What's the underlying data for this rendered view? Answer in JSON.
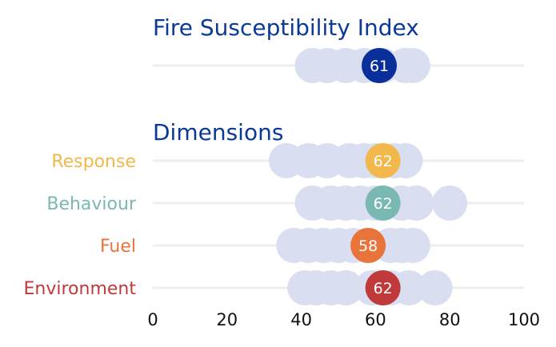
{
  "chart_data": {
    "type": "scatter",
    "title": "Fire Susceptibility Index",
    "section_title": "Dimensions",
    "xlabel": "",
    "ylabel": "",
    "xlim": [
      0,
      100
    ],
    "xticks": [
      0,
      20,
      40,
      60,
      80,
      100
    ],
    "grid": false,
    "colors": {
      "title": "#0b3a96",
      "background_dots": "#d9def0",
      "gridline": "#eeeeee"
    },
    "index": {
      "value": 61,
      "color": "#0a2f9a",
      "background_values": [
        43,
        47,
        52,
        57,
        62,
        68,
        70
      ]
    },
    "rows": [
      {
        "name": "Response",
        "value": 62,
        "color": "#f2b84b",
        "background_values": [
          36,
          42,
          47,
          53,
          57,
          60,
          65,
          68
        ]
      },
      {
        "name": "Behaviour",
        "value": 62,
        "color": "#7ab8b4",
        "background_values": [
          43,
          48,
          52,
          56,
          60,
          67,
          71,
          80
        ]
      },
      {
        "name": "Fuel",
        "value": 58,
        "color": "#e8743b",
        "background_values": [
          38,
          42,
          46,
          50,
          54,
          64,
          67,
          70
        ]
      },
      {
        "name": "Environment",
        "value": 62,
        "color": "#c0393b",
        "background_values": [
          41,
          44,
          48,
          52,
          59,
          64,
          69,
          76
        ]
      }
    ]
  }
}
